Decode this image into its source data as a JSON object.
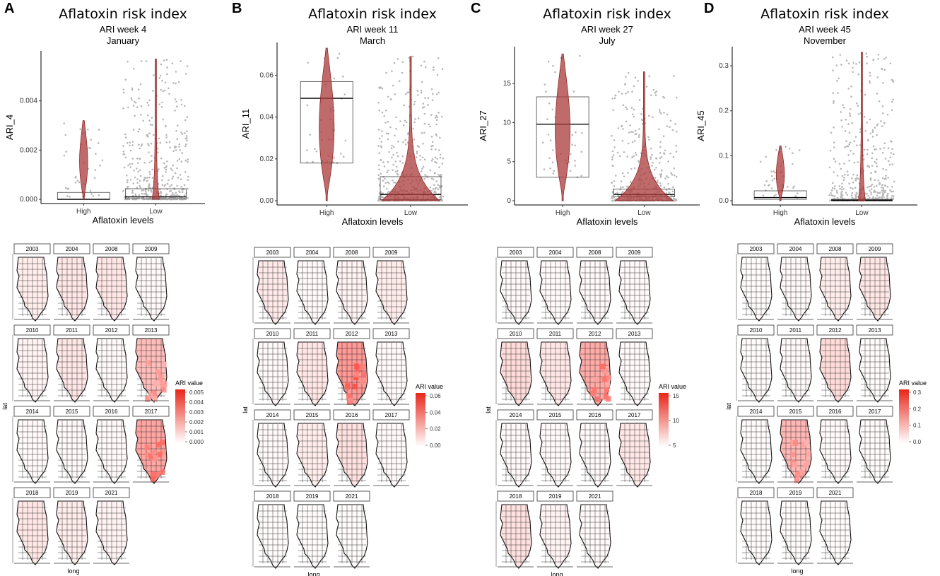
{
  "chart_data": [
    {
      "type": "violin",
      "panel_label": "A",
      "title": "Aflatoxin risk index",
      "subtitle_week": "ARI week 4",
      "subtitle_month": "January",
      "xlabel": "Aflatoxin levels",
      "ylabel": "ARI_4",
      "categories": [
        "High",
        "Low"
      ],
      "ylim": [
        0,
        0.0058
      ],
      "yticks": [
        0,
        0.002,
        0.004
      ],
      "ytick_labels": [
        "0.000",
        "0.002",
        "0.004"
      ],
      "groups": [
        {
          "name": "High",
          "q1": 0.0,
          "median": 0.0,
          "q3": 0.00028,
          "max": 0.0032
        },
        {
          "name": "Low",
          "q1": 2e-05,
          "median": 0.0001,
          "q3": 0.00043,
          "max": 0.0057
        }
      ],
      "map_years": [
        "2003",
        "2004",
        "2008",
        "2009",
        "2010",
        "2011",
        "2012",
        "2013",
        "2014",
        "2015",
        "2016",
        "2017",
        "2018",
        "2019",
        "2021"
      ],
      "map_intensity": [
        0.15,
        0.2,
        0.2,
        0.05,
        0.1,
        0.2,
        0.05,
        0.55,
        0.05,
        0.05,
        0.05,
        0.75,
        0.2,
        0.15,
        0.1
      ],
      "map_xlabel": "long",
      "map_ylabel": "lat",
      "legend_title": "ARI value",
      "legend_ticks": [
        "0.005",
        "0.004",
        "0.003",
        "0.002",
        "0.001",
        "0.000"
      ]
    },
    {
      "type": "violin",
      "panel_label": "B",
      "title": "Aflatoxin risk index",
      "subtitle_week": "ARI week 11",
      "subtitle_month": "March",
      "xlabel": "Aflatoxin levels",
      "ylabel": "ARI_11",
      "categories": [
        "High",
        "Low"
      ],
      "ylim": [
        0,
        0.073
      ],
      "yticks": [
        0,
        0.02,
        0.04,
        0.06
      ],
      "ytick_labels": [
        "0.00",
        "0.02",
        "0.04",
        "0.06"
      ],
      "groups": [
        {
          "name": "High",
          "q1": 0.018,
          "median": 0.049,
          "q3": 0.057,
          "max": 0.073
        },
        {
          "name": "Low",
          "q1": 0.0005,
          "median": 0.003,
          "q3": 0.0115,
          "max": 0.069
        }
      ],
      "map_years": [
        "2003",
        "2004",
        "2008",
        "2009",
        "2010",
        "2011",
        "2012",
        "2013",
        "2014",
        "2015",
        "2016",
        "2017",
        "2018",
        "2019",
        "2021"
      ],
      "map_intensity": [
        0.18,
        0.05,
        0.1,
        0.15,
        0.05,
        0.2,
        0.85,
        0.05,
        0.05,
        0.15,
        0.25,
        0.05,
        0.03,
        0.03,
        0.03
      ],
      "map_xlabel": "long",
      "map_ylabel": "lat",
      "legend_title": "ARI value",
      "legend_ticks": [
        "0.06",
        "0.04",
        "0.02",
        "0.00"
      ]
    },
    {
      "type": "violin",
      "panel_label": "C",
      "title": "Aflatoxin risk index",
      "subtitle_week": "ARI week 27",
      "subtitle_month": "July",
      "xlabel": "Aflatoxin levels",
      "ylabel": "ARI_27",
      "categories": [
        "High",
        "Low"
      ],
      "ylim": [
        0,
        19
      ],
      "yticks": [
        0,
        5,
        10,
        15
      ],
      "ytick_labels": [
        "0",
        "5",
        "10",
        "15"
      ],
      "groups": [
        {
          "name": "High",
          "q1": 3.0,
          "median": 9.8,
          "q3": 13.3,
          "max": 18.8
        },
        {
          "name": "Low",
          "q1": 0.5,
          "median": 0.8,
          "q3": 1.5,
          "max": 16.5
        }
      ],
      "map_years": [
        "2003",
        "2004",
        "2008",
        "2009",
        "2010",
        "2011",
        "2012",
        "2013",
        "2014",
        "2015",
        "2016",
        "2017",
        "2018",
        "2019",
        "2021"
      ],
      "map_intensity": [
        0.05,
        0.05,
        0.05,
        0.05,
        0.3,
        0.2,
        0.7,
        0.05,
        0.05,
        0.05,
        0.05,
        0.2,
        0.25,
        0.1,
        0.05
      ],
      "map_xlabel": "long",
      "map_ylabel": "lat",
      "legend_title": "ARI value",
      "legend_ticks": [
        "15",
        "10",
        "5"
      ]
    },
    {
      "type": "violin",
      "panel_label": "D",
      "title": "Aflatoxin risk index",
      "subtitle_week": "ARI week 45",
      "subtitle_month": "November",
      "xlabel": "Aflatoxin levels",
      "ylabel": "ARI_45",
      "categories": [
        "High",
        "Low"
      ],
      "ylim": [
        0,
        0.33
      ],
      "yticks": [
        0,
        0.1,
        0.2,
        0.3
      ],
      "ytick_labels": [
        "0.0",
        "0.1",
        "0.2",
        "0.3"
      ],
      "groups": [
        {
          "name": "High",
          "q1": 0.003,
          "median": 0.007,
          "q3": 0.022,
          "max": 0.122
        },
        {
          "name": "Low",
          "q1": 0.0,
          "median": 0.001,
          "q3": 0.003,
          "max": 0.33
        }
      ],
      "map_years": [
        "2003",
        "2004",
        "2008",
        "2009",
        "2010",
        "2011",
        "2012",
        "2013",
        "2014",
        "2015",
        "2016",
        "2017",
        "2018",
        "2019",
        "2021"
      ],
      "map_intensity": [
        0.03,
        0.05,
        0.15,
        0.2,
        0.03,
        0.05,
        0.3,
        0.03,
        0.03,
        0.6,
        0.05,
        0.03,
        0.03,
        0.03,
        0.03
      ],
      "map_xlabel": "long",
      "map_ylabel": "lat",
      "legend_title": "ARI value",
      "legend_ticks": [
        "0.3",
        "0.2",
        "0.1",
        "0.0"
      ]
    }
  ]
}
